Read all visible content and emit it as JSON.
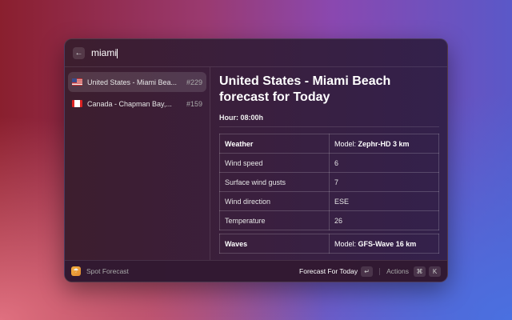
{
  "search": {
    "query": "miami",
    "back_icon": "arrow-left-icon"
  },
  "results": [
    {
      "country": "us",
      "label": "United States - Miami Bea...",
      "id": "#229",
      "selected": true
    },
    {
      "country": "ca",
      "label": "Canada - Chapman Bay,...",
      "id": "#159",
      "selected": false
    }
  ],
  "detail": {
    "title": "United States - Miami Beach forecast for Today",
    "hour": "Hour: 08:00h",
    "weather": {
      "header": "Weather",
      "model_label": "Model: ",
      "model": "Zephr-HD 3 km",
      "rows": [
        [
          "Wind speed",
          "6"
        ],
        [
          "Surface wind gusts",
          "7"
        ],
        [
          "Wind direction",
          "ESE"
        ],
        [
          "Temperature",
          "26"
        ]
      ]
    },
    "waves": {
      "header": "Waves",
      "model_label": "Model: ",
      "model": "GFS-Wave 16 km"
    }
  },
  "footer": {
    "app_name": "Spot Forecast",
    "primary_action": "Forecast For Today",
    "enter_key": "↵",
    "actions": "Actions",
    "key1": "⌘",
    "key2": "K"
  }
}
